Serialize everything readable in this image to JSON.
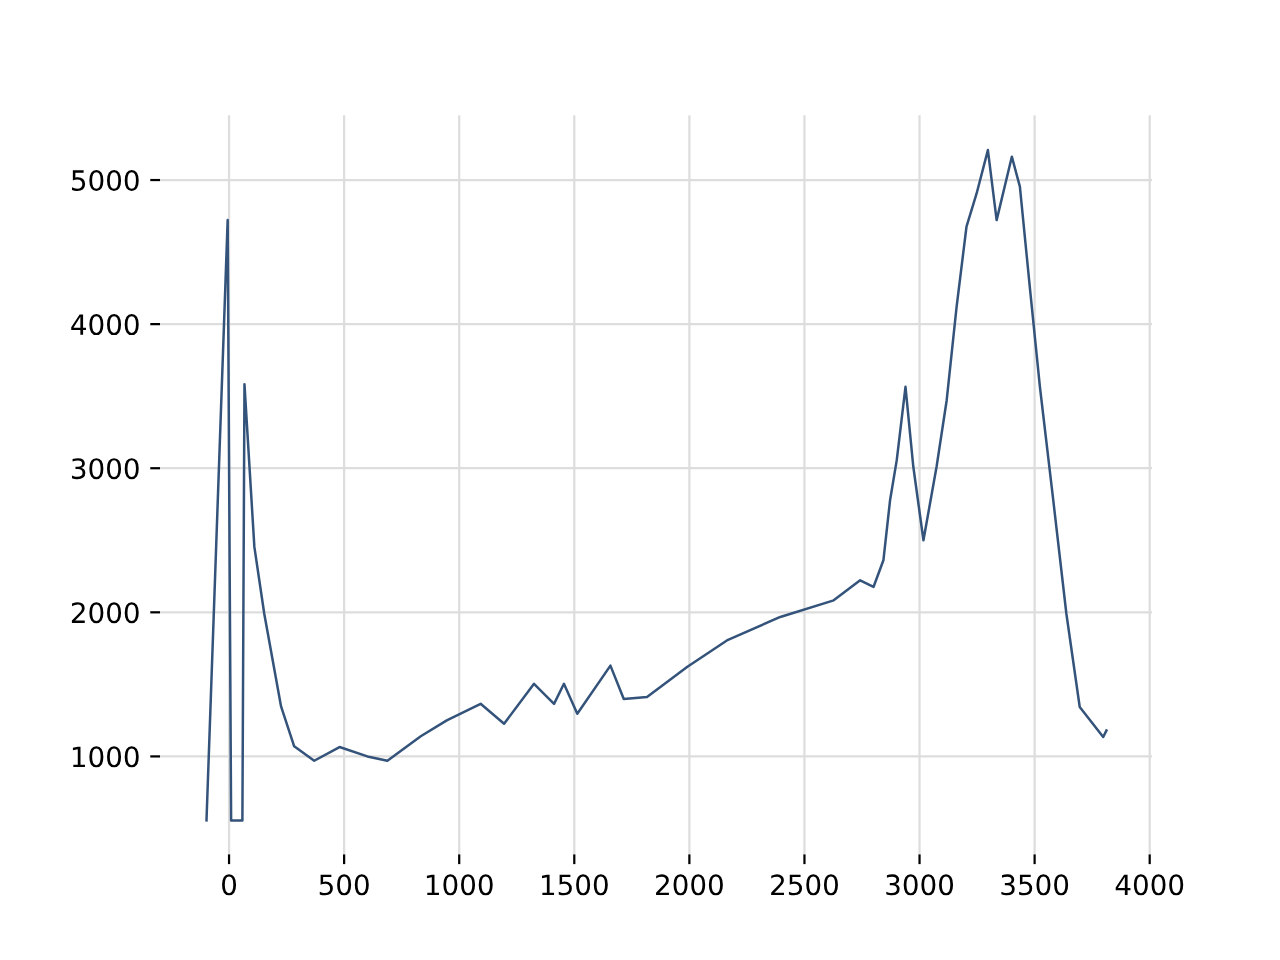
{
  "chart_data": {
    "type": "line",
    "series": [
      {
        "color": "#34537a",
        "x": [
          -98,
          -6,
          9,
          58,
          67,
          110,
          153,
          226,
          283,
          370,
          480,
          601,
          688,
          833,
          946,
          1093,
          1195,
          1325,
          1412,
          1455,
          1513,
          1657,
          1715,
          1816,
          1990,
          2163,
          2395,
          2627,
          2742,
          2800,
          2843,
          2872,
          2901,
          2939,
          2973,
          3017,
          3074,
          3118,
          3161,
          3204,
          3248,
          3297,
          3335,
          3401,
          3436,
          3479,
          3523,
          3581,
          3638,
          3696,
          3798,
          3812
        ],
        "values": [
          556,
          4722,
          556,
          556,
          3583,
          2454,
          1990,
          1347,
          1070,
          970,
          1065,
          1000,
          970,
          1140,
          1250,
          1365,
          1227,
          1504,
          1365,
          1504,
          1296,
          1630,
          1398,
          1412,
          1620,
          1805,
          1968,
          2083,
          2222,
          2176,
          2361,
          2778,
          3056,
          3565,
          3010,
          2500,
          3010,
          3472,
          4120,
          4676,
          4907,
          5208,
          4722,
          5162,
          4954,
          4259,
          3565,
          2778,
          1990,
          1343,
          1135,
          1180
        ]
      }
    ],
    "xlim": [
      -300,
      4010
    ],
    "ylim": [
      320,
      5450
    ],
    "xticks": [
      0,
      500,
      1000,
      1500,
      2000,
      2500,
      3000,
      3500,
      4000
    ],
    "yticks": [
      1000,
      2000,
      3000,
      4000,
      5000
    ],
    "grid": true,
    "legend": false
  }
}
